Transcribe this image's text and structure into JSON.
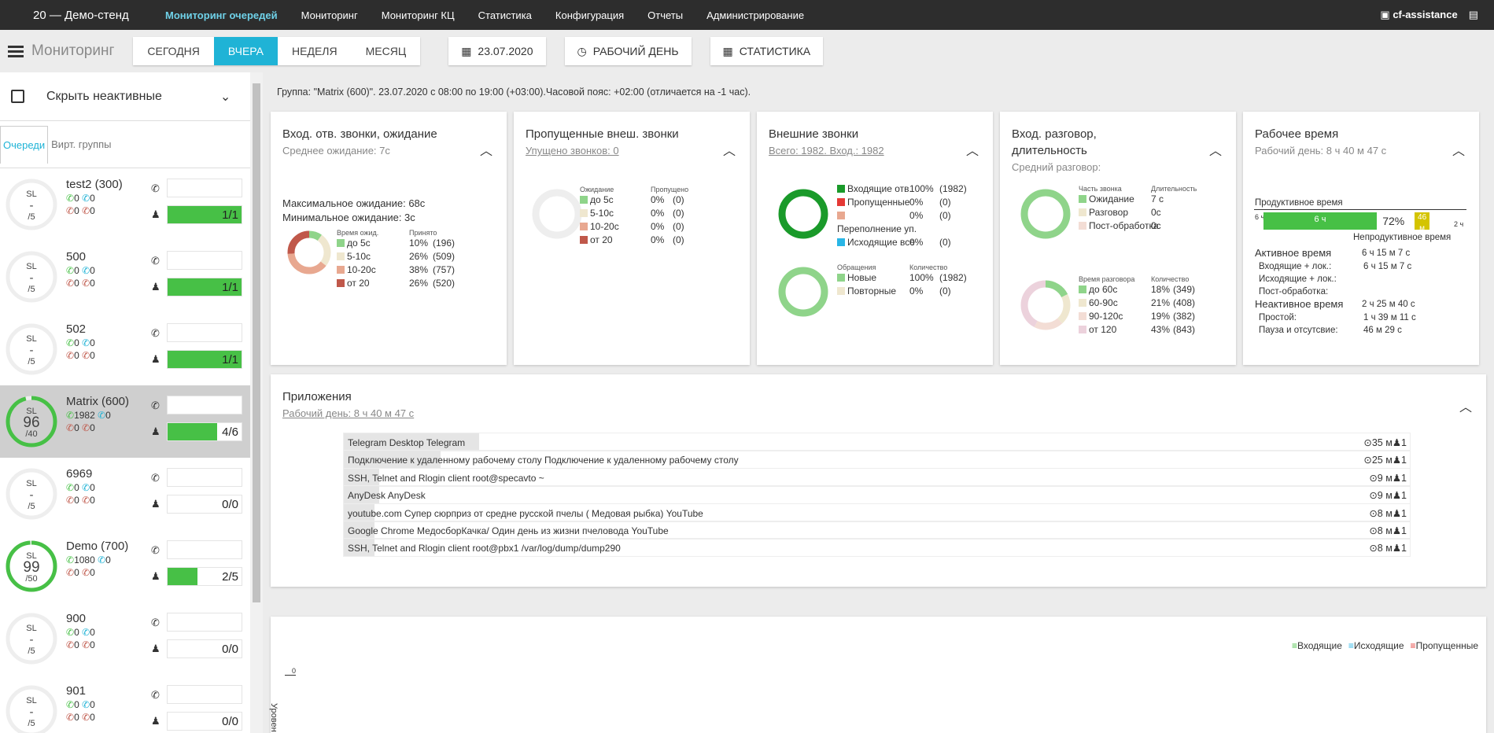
{
  "topbar": {
    "stand": "20 — Демо-стенд",
    "menu": [
      "Мониторинг очередей",
      "Мониторинг",
      "Мониторинг КЦ",
      "Статистика",
      "Конфигурация",
      "Отчеты",
      "Администрирование"
    ],
    "user": "cf-assistance"
  },
  "toolbar": {
    "title": "Мониторинг",
    "periods": [
      "СЕГОДНЯ",
      "ВЧЕРА",
      "НЕДЕЛЯ",
      "МЕСЯЦ"
    ],
    "date": "23.07.2020",
    "workday": "РАБОЧИЙ ДЕНЬ",
    "stats": "СТАТИСТИКА"
  },
  "sidebar": {
    "hide_label": "Скрыть неактивные",
    "tabs": [
      "Очереди",
      "Вирт. группы"
    ],
    "queues": [
      {
        "name": "test2 (300)",
        "sl": "-",
        "sl_pct": 0,
        "target": "/5",
        "in": "0",
        "out": "0",
        "miss": "0",
        "ret": "0",
        "agents": "1/1",
        "fill": 1
      },
      {
        "name": "500",
        "sl": "-",
        "sl_pct": 0,
        "target": "/5",
        "in": "0",
        "out": "0",
        "miss": "0",
        "ret": "0",
        "agents": "1/1",
        "fill": 1
      },
      {
        "name": "502",
        "sl": "-",
        "sl_pct": 0,
        "target": "/5",
        "in": "0",
        "out": "0",
        "miss": "0",
        "ret": "0",
        "agents": "1/1",
        "fill": 1
      },
      {
        "name": "Matrix (600)",
        "sl": "96",
        "sl_pct": 0.96,
        "target": "/40",
        "in": "1982",
        "out": "0",
        "miss": "0",
        "ret": "0",
        "agents": "4/6",
        "fill": 0.667
      },
      {
        "name": "6969",
        "sl": "-",
        "sl_pct": 0,
        "target": "/5",
        "in": "0",
        "out": "0",
        "miss": "0",
        "ret": "0",
        "agents": "0/0",
        "fill": 0
      },
      {
        "name": "Demo (700)",
        "sl": "99",
        "sl_pct": 0.99,
        "target": "/50",
        "in": "1080",
        "out": "0",
        "miss": "0",
        "ret": "0",
        "agents": "2/5",
        "fill": 0.4
      },
      {
        "name": "900",
        "sl": "-",
        "sl_pct": 0,
        "target": "/5",
        "in": "0",
        "out": "0",
        "miss": "0",
        "ret": "0",
        "agents": "0/0",
        "fill": 0
      },
      {
        "name": "901",
        "sl": "-",
        "sl_pct": 0,
        "target": "/5",
        "in": "0",
        "out": "0",
        "miss": "0",
        "ret": "0",
        "agents": "0/0",
        "fill": 0
      }
    ]
  },
  "info": "Группа: \"Matrix (600)\". 23.07.2020 с 08:00 по 19:00 (+03:00).Часовой пояс: +02:00 (отличается на -1 час).",
  "cards": {
    "c1": {
      "title": "Вход. отв. звонки, ожидание",
      "sub": "Среднее ожидание: 7с",
      "max": "Максимальное ожидание: 68с",
      "min": "Минимальное ожидание: 3с",
      "h1": "Время ожид.",
      "h2": "Принято",
      "rows": [
        {
          "l": "до 5с",
          "p": "10%",
          "n": "(196)",
          "c": "#8fd48a",
          "v": 196
        },
        {
          "l": "5-10с",
          "p": "26%",
          "n": "(509)",
          "c": "#efe7cf",
          "v": 509
        },
        {
          "l": "10-20с",
          "p": "38%",
          "n": "(757)",
          "c": "#e8a890",
          "v": 757
        },
        {
          "l": "от 20",
          "p": "26%",
          "n": "(520)",
          "c": "#c0584a",
          "v": 520
        }
      ]
    },
    "c2": {
      "title": "Пропущенные внеш. звонки",
      "sub": "Упущено звонков: 0",
      "h1": "Ожидание",
      "h2": "Пропущено",
      "rows": [
        {
          "l": "до 5с",
          "p": "0%",
          "n": "(0)",
          "c": "#8fd48a"
        },
        {
          "l": "5-10с",
          "p": "0%",
          "n": "(0)",
          "c": "#efe7cf"
        },
        {
          "l": "10-20с",
          "p": "0%",
          "n": "(0)",
          "c": "#e8a890"
        },
        {
          "l": "от 20",
          "p": "0%",
          "n": "(0)",
          "c": "#c0584a"
        }
      ]
    },
    "c3": {
      "title": "Внешние звонки",
      "sub": "Всего: 1982. Вход.: 1982",
      "rows": [
        {
          "l": "Входящие отв.",
          "p": "100%",
          "n": "(1982)",
          "c": "#1a9a2a"
        },
        {
          "l": "Пропущенные",
          "p": "0%",
          "n": "(0)",
          "c": "#e53935"
        },
        {
          "l": "",
          "p": "0%",
          "n": "(0)",
          "c": "#e8a890"
        },
        {
          "l": "Переполнение уп.",
          "p": "",
          "n": "",
          "c": ""
        },
        {
          "l": "Исходящие все",
          "p": "0%",
          "n": "(0)",
          "c": "#29b6e6"
        }
      ],
      "h1": "Обращения",
      "h2": "Количество",
      "rows2": [
        {
          "l": "Новые",
          "p": "100%",
          "n": "(1982)",
          "c": "#8fd48a"
        },
        {
          "l": "Повторные",
          "p": "0%",
          "n": "(0)",
          "c": "#efe7cf"
        }
      ]
    },
    "c4": {
      "title": "Вход. разговор, длительность",
      "sub": "Средний разговор:",
      "h1": "Часть звонка",
      "h2": "Длительность",
      "rows": [
        {
          "l": "Ожидание",
          "p": "7 с",
          "c": "#8fd48a"
        },
        {
          "l": "Разговор",
          "p": "0с",
          "c": "#efe7cf"
        },
        {
          "l": "Пост-обработка",
          "p": "0с",
          "c": "#f3ddd5"
        }
      ],
      "h3": "Время разговора",
      "h4": "Количество",
      "rows2": [
        {
          "l": "до 60с",
          "p": "18%",
          "n": "(349)",
          "c": "#8fd48a",
          "v": 349
        },
        {
          "l": "60-90с",
          "p": "21%",
          "n": "(408)",
          "c": "#efe7cf",
          "v": 408
        },
        {
          "l": "90-120с",
          "p": "19%",
          "n": "(382)",
          "c": "#f3ddd5",
          "v": 382
        },
        {
          "l": "от 120",
          "p": "43%",
          "n": "(843)",
          "c": "#ecd2dc",
          "v": 843
        }
      ]
    },
    "c5": {
      "title": "Рабочее время",
      "sub": "Рабочий день: 8 ч 40 м 47 с",
      "prod": "Продуктивное время",
      "left": "6 ч",
      "bar": "6 ч",
      "pct": "72%",
      "yellow": "46 м",
      "right": "2 ч",
      "unprod": "Непродуктивное время",
      "active": "Активное время",
      "active_v": "6 ч 15 м 7 с",
      "in_lok": "Входящие + лок.:",
      "in_lok_v": "6 ч 15 м 7 с",
      "out_lok": "Исходящие + лок.:",
      "post": "Пост-обработка:",
      "inactive": "Неактивное время",
      "inactive_v": "2 ч 25 м 40 с",
      "idle": "Простой:",
      "idle_v": "1 ч 39 м 11 с",
      "pause": "Пауза и отсутсвие:",
      "pause_v": "46 м 29 с"
    }
  },
  "apps": {
    "title": "Приложения",
    "sub": "Рабочий день: 8 ч 40 м 47 с",
    "rows": [
      {
        "t": "Telegram Desktop Telegram",
        "time": "35 м",
        "n": "1",
        "w": 0.127
      },
      {
        "t": "Подключение к удаленному рабочему столу Подключение к удаленному рабочему столу",
        "time": "25 м",
        "n": "1",
        "w": 0.091
      },
      {
        "t": "SSH, Telnet and Rlogin client root@specavto ~",
        "time": "9 м",
        "n": "1",
        "w": 0.033
      },
      {
        "t": "AnyDesk AnyDesk",
        "time": "9 м",
        "n": "1",
        "w": 0.033
      },
      {
        "t": "youtube.com Супер сюрприз от средне русской пчелы ( Медовая рыбка) YouTube",
        "time": "8 м",
        "n": "1",
        "w": 0.029
      },
      {
        "t": "Google Chrome МедосборКачка/ Один день из жизни пчеловода YouTube",
        "time": "8 м",
        "n": "1",
        "w": 0.029
      },
      {
        "t": "SSH, Telnet and Rlogin client root@pbx1 /var/log/dump/dump290",
        "time": "8 м",
        "n": "1",
        "w": 0.029
      }
    ]
  },
  "bottom": {
    "legend": [
      "Входящие",
      "Исходящие",
      "Пропущенные"
    ],
    "legend_colors": [
      "#47c046",
      "#29b6e6",
      "#e53935"
    ],
    "tick": "0",
    "ylabel": "Уровен"
  }
}
